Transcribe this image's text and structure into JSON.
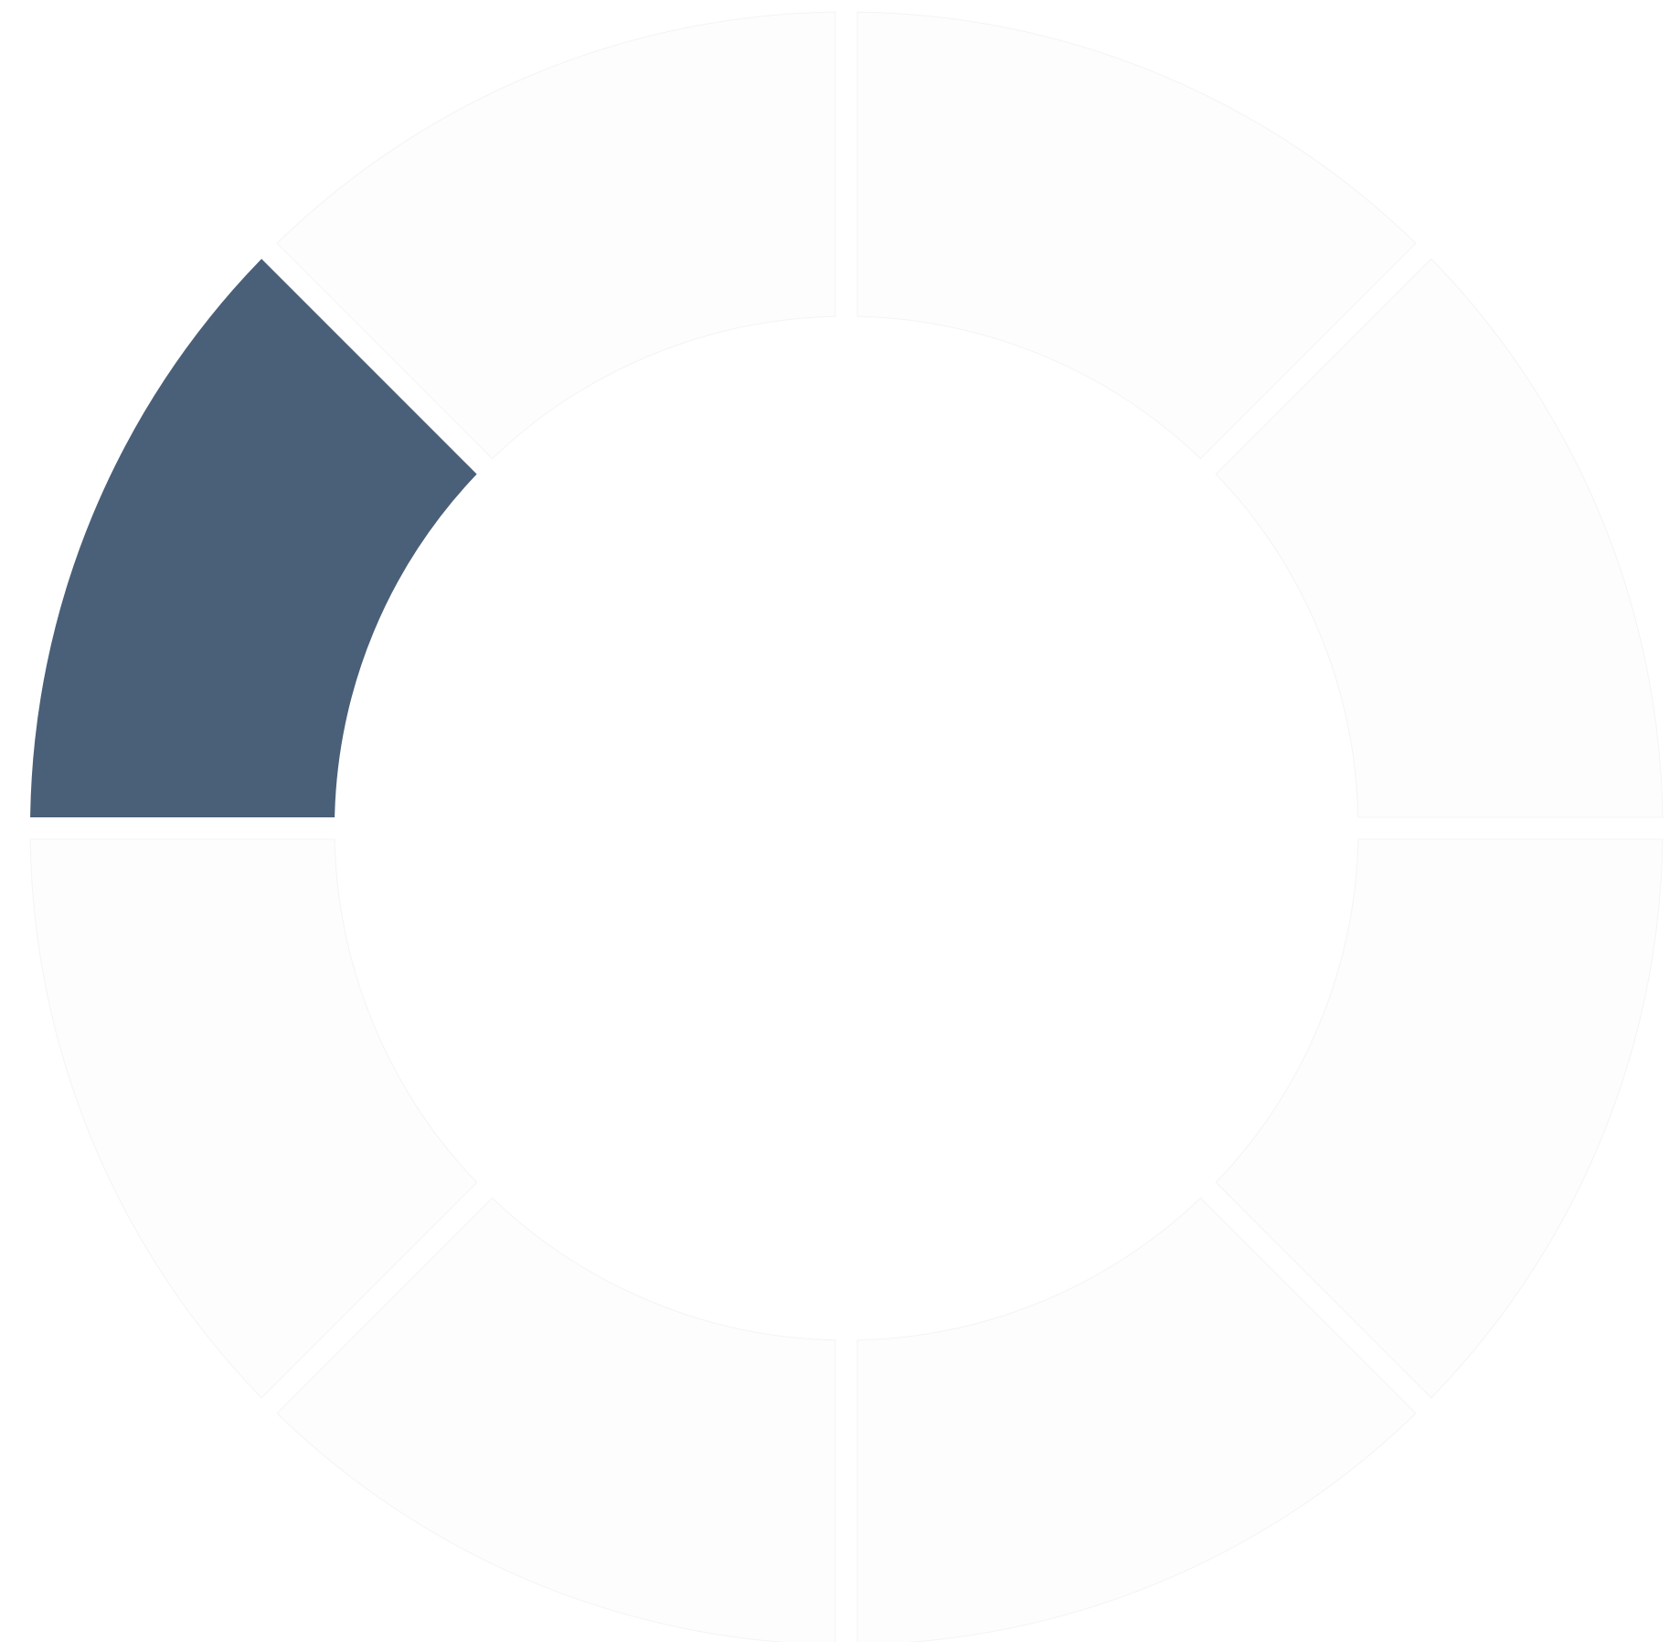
{
  "spinner": {
    "icon": "loading-spinner-icon",
    "segment_count": 8,
    "active_segment": 4,
    "colors": {
      "active": "#4a5f78",
      "inactive": "#fdfdfd",
      "inactive_stroke": "#f4f4f4",
      "background": "#ffffff"
    }
  }
}
